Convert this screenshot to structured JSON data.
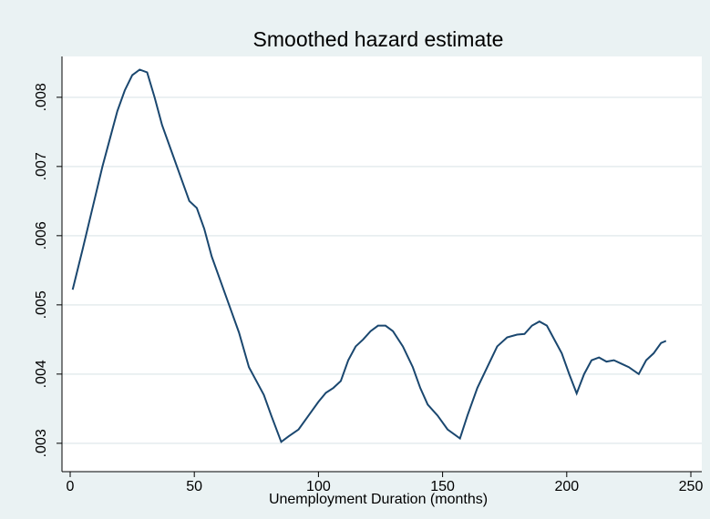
{
  "chart_data": {
    "type": "line",
    "title": "Smoothed hazard estimate",
    "xlabel": "Unemployment Duration (months)",
    "x": [
      1,
      5,
      9,
      13,
      16,
      19,
      22,
      25,
      28,
      31,
      34,
      37,
      41,
      45,
      48,
      51,
      54,
      57,
      60,
      64,
      68,
      72,
      75,
      78,
      81,
      85,
      88,
      92,
      96,
      100,
      103,
      106,
      109,
      112,
      115,
      118,
      121,
      124,
      127,
      130,
      134,
      138,
      141,
      144,
      148,
      152,
      157,
      160,
      164,
      168,
      172,
      176,
      180,
      183,
      186,
      189,
      192,
      195,
      198,
      201,
      204,
      207,
      210,
      213,
      216,
      219,
      222,
      225,
      229,
      232,
      235,
      238,
      240
    ],
    "series": [
      {
        "color": "#1a476f",
        "values": [
          0.00522,
          0.0058,
          0.0064,
          0.007,
          0.0074,
          0.0078,
          0.0081,
          0.00832,
          0.0084,
          0.00836,
          0.008,
          0.0076,
          0.0072,
          0.0068,
          0.0065,
          0.0064,
          0.0061,
          0.0057,
          0.0054,
          0.005,
          0.0046,
          0.0041,
          0.0039,
          0.0037,
          0.0034,
          0.00302,
          0.0031,
          0.0032,
          0.0034,
          0.0036,
          0.00373,
          0.0038,
          0.0039,
          0.0042,
          0.0044,
          0.0045,
          0.00462,
          0.0047,
          0.0047,
          0.00462,
          0.0044,
          0.0041,
          0.0038,
          0.00356,
          0.0034,
          0.0032,
          0.00307,
          0.0034,
          0.0038,
          0.0041,
          0.0044,
          0.00453,
          0.00457,
          0.00458,
          0.0047,
          0.00476,
          0.0047,
          0.0045,
          0.0043,
          0.004,
          0.00372,
          0.004,
          0.0042,
          0.00424,
          0.00418,
          0.0042,
          0.00415,
          0.0041,
          0.004,
          0.0042,
          0.0043,
          0.00445,
          0.00448
        ]
      }
    ],
    "xlim": [
      -3.3,
      254.4
    ],
    "ylim": [
      0.00259,
      0.00859
    ],
    "xticks": [
      0,
      50,
      100,
      150,
      200,
      250
    ],
    "yticks": [
      {
        "value": 0.003,
        "label": ".003"
      },
      {
        "value": 0.004,
        "label": ".004"
      },
      {
        "value": 0.005,
        "label": ".005"
      },
      {
        "value": 0.006,
        "label": ".006"
      },
      {
        "value": 0.007,
        "label": ".007"
      },
      {
        "value": 0.008,
        "label": ".008"
      }
    ],
    "grid": true
  }
}
